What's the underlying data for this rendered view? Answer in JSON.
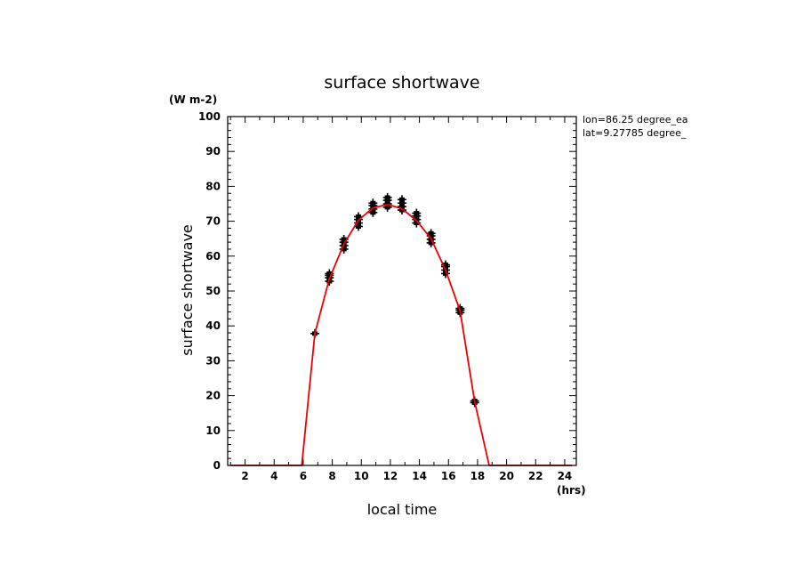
{
  "chart_data": {
    "type": "line",
    "title": "surface shortwave",
    "xlabel": "local time",
    "ylabel": "surface shortwave",
    "x_unit": "(hrs)",
    "y_unit": "(W m-2)",
    "xlim": [
      0.8,
      24.8
    ],
    "ylim": [
      0,
      100
    ],
    "x_ticks": [
      "2",
      "4",
      "6",
      "8",
      "10",
      "12",
      "14",
      "16",
      "18",
      "20",
      "22",
      "24"
    ],
    "y_ticks": [
      "0",
      "10",
      "20",
      "30",
      "40",
      "50",
      "60",
      "70",
      "80",
      "90",
      "100"
    ],
    "annotations": [
      "lon=86.25 degree_ea",
      "lat=9.27785 degree_"
    ],
    "line_color": "#ee0000",
    "marker_color": "#000000",
    "grid": false,
    "series": [
      {
        "type": "line",
        "x": [
          1,
          2,
          3,
          4,
          5,
          5.9,
          6.8,
          7.8,
          8.8,
          9.8,
          10.8,
          11.8,
          12.8,
          13.8,
          14.8,
          15.8,
          16.8,
          17.8,
          18.8,
          20,
          21,
          22,
          23,
          24.5
        ],
        "values": [
          0,
          0,
          0,
          0,
          0,
          0,
          37.8,
          53.5,
          63.5,
          70.3,
          73.8,
          74.8,
          73.6,
          70.2,
          65.0,
          56.0,
          44.3,
          18.3,
          0,
          0,
          0,
          0,
          0,
          0
        ]
      },
      {
        "type": "scatter",
        "x": [
          6.8,
          7.8,
          7.8,
          7.8,
          7.8,
          8.8,
          8.8,
          8.8,
          8.8,
          9.8,
          9.8,
          9.8,
          9.8,
          10.8,
          10.8,
          10.8,
          10.8,
          11.8,
          11.8,
          11.8,
          11.8,
          12.8,
          12.8,
          12.8,
          12.8,
          13.8,
          13.8,
          13.8,
          13.8,
          14.8,
          14.8,
          14.8,
          14.8,
          15.8,
          15.8,
          15.8,
          15.8,
          16.8,
          16.8,
          16.8,
          17.8,
          17.8
        ],
        "values": [
          37.8,
          52.8,
          53.8,
          54.5,
          55.0,
          62.0,
          63.0,
          64.0,
          64.8,
          68.5,
          69.5,
          70.5,
          71.3,
          72.5,
          73.5,
          74.5,
          75.2,
          74.0,
          75.0,
          76.0,
          76.8,
          73.2,
          74.2,
          75.2,
          76.2,
          69.5,
          70.5,
          71.5,
          72.3,
          63.8,
          64.8,
          65.8,
          66.5,
          55.0,
          56.0,
          57.0,
          57.5,
          43.8,
          44.5,
          45.0,
          18.0,
          18.5
        ]
      }
    ]
  }
}
